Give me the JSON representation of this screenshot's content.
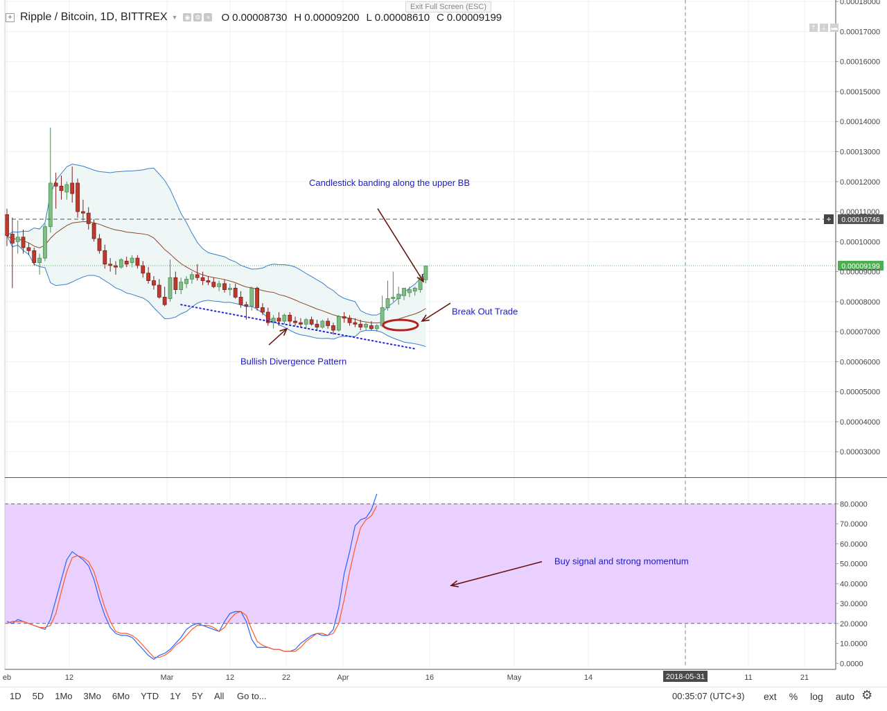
{
  "header": {
    "add_symbol_icon": "plus-box-icon",
    "title": "Ripple / Bitcoin, 1D, BITTREX",
    "ohlc": {
      "o_label": "O",
      "o_value": "0.00008730",
      "h_label": "H",
      "h_value": "0.00009200",
      "l_label": "L",
      "l_value": "0.00008610",
      "c_label": "C",
      "c_value": "0.00009199"
    },
    "exit_fullscreen": "Exit Full Screen (ESC)"
  },
  "chart_data": [
    {
      "type": "candlestick",
      "title": "Ripple / Bitcoin, 1D, BITTREX",
      "y_axis_ticks": [
        "0.00018000",
        "0.00017000",
        "0.00016000",
        "0.00015000",
        "0.00014000",
        "0.00013000",
        "0.00012000",
        "0.00011000",
        "0.00010000",
        "0.00009000",
        "0.00008000",
        "0.00007000",
        "0.00006000",
        "0.00005000",
        "0.00004000",
        "0.00003000"
      ],
      "ylim": [
        2.15e-05,
        0.0001805
      ],
      "x_axis_labels": [
        "eb",
        "12",
        "Mar",
        "12",
        "22",
        "Apr",
        "16",
        "May",
        "14",
        "2018-05-31",
        "11",
        "21"
      ],
      "price_markers": [
        {
          "value": 0.00010746,
          "label": "0.00010746",
          "color": "#555555"
        },
        {
          "value": 9.199e-05,
          "label": "0.00009199",
          "color": "#4caf50"
        }
      ],
      "candles": [
        {
          "o": 0.000109,
          "h": 0.000111,
          "l": 9.85e-05,
          "c": 0.000102
        },
        {
          "o": 0.0001025,
          "h": 0.000108,
          "l": 8.45e-05,
          "c": 9.95e-05
        },
        {
          "o": 0.0001,
          "h": 0.000107,
          "l": 9.6e-05,
          "c": 0.0001015
        },
        {
          "o": 0.0001015,
          "h": 0.000104,
          "l": 9.6e-05,
          "c": 9.8e-05
        },
        {
          "o": 9.8e-05,
          "h": 9.95e-05,
          "l": 9.55e-05,
          "c": 9.7e-05
        },
        {
          "o": 9.7e-05,
          "h": 9.8e-05,
          "l": 9.2e-05,
          "c": 9.3e-05
        },
        {
          "o": 9.3e-05,
          "h": 9.6e-05,
          "l": 8.9e-05,
          "c": 9.45e-05
        },
        {
          "o": 9.45e-05,
          "h": 0.000106,
          "l": 9.35e-05,
          "c": 0.000105
        },
        {
          "o": 0.000105,
          "h": 0.000138,
          "l": 0.000103,
          "c": 0.0001195
        },
        {
          "o": 0.0001195,
          "h": 0.000123,
          "l": 0.000111,
          "c": 0.0001185
        },
        {
          "o": 0.0001185,
          "h": 0.000122,
          "l": 0.000114,
          "c": 0.000117
        },
        {
          "o": 0.0001165,
          "h": 0.00012,
          "l": 0.000114,
          "c": 0.000119
        },
        {
          "o": 0.0001195,
          "h": 0.000125,
          "l": 0.000113,
          "c": 0.000116
        },
        {
          "o": 0.0001195,
          "h": 0.000121,
          "l": 0.000108,
          "c": 0.00011
        },
        {
          "o": 0.00011,
          "h": 0.000114,
          "l": 0.000107,
          "c": 0.0001095
        },
        {
          "o": 0.0001095,
          "h": 0.0001115,
          "l": 0.000104,
          "c": 0.000106
        },
        {
          "o": 0.000106,
          "h": 0.0001075,
          "l": 0.0001,
          "c": 0.000101
        },
        {
          "o": 0.000101,
          "h": 0.0001025,
          "l": 9.6e-05,
          "c": 9.7e-05
        },
        {
          "o": 9.7e-05,
          "h": 9.9e-05,
          "l": 9.1e-05,
          "c": 9.25e-05
        },
        {
          "o": 9.25e-05,
          "h": 9.45e-05,
          "l": 9e-05,
          "c": 9.2e-05
        },
        {
          "o": 9.2e-05,
          "h": 9.35e-05,
          "l": 8.9e-05,
          "c": 9.15e-05
        },
        {
          "o": 9.15e-05,
          "h": 9.45e-05,
          "l": 9.1e-05,
          "c": 9.4e-05
        },
        {
          "o": 9.35e-05,
          "h": 9.5e-05,
          "l": 9.15e-05,
          "c": 9.25e-05
        },
        {
          "o": 9.3e-05,
          "h": 9.55e-05,
          "l": 9.15e-05,
          "c": 9.45e-05
        },
        {
          "o": 9.45e-05,
          "h": 9.55e-05,
          "l": 9.1e-05,
          "c": 9.2e-05
        },
        {
          "o": 9.2e-05,
          "h": 9.35e-05,
          "l": 8.8e-05,
          "c": 8.95e-05
        },
        {
          "o": 8.95e-05,
          "h": 9.15e-05,
          "l": 8.6e-05,
          "c": 8.7e-05
        },
        {
          "o": 8.7e-05,
          "h": 8.85e-05,
          "l": 8.4e-05,
          "c": 8.55e-05
        },
        {
          "o": 8.55e-05,
          "h": 8.75e-05,
          "l": 8.1e-05,
          "c": 8.15e-05
        },
        {
          "o": 8.15e-05,
          "h": 8.5e-05,
          "l": 7.85e-05,
          "c": 7.9e-05
        },
        {
          "o": 8.1e-05,
          "h": 9.4e-05,
          "l": 8e-05,
          "c": 8.8e-05
        },
        {
          "o": 8.8e-05,
          "h": 9e-05,
          "l": 8.25e-05,
          "c": 8.4e-05
        },
        {
          "o": 8.4e-05,
          "h": 8.8e-05,
          "l": 8.25e-05,
          "c": 8.65e-05
        },
        {
          "o": 8.6e-05,
          "h": 8.85e-05,
          "l": 8.45e-05,
          "c": 8.75e-05
        },
        {
          "o": 8.75e-05,
          "h": 9e-05,
          "l": 8.6e-05,
          "c": 8.9e-05
        },
        {
          "o": 8.9e-05,
          "h": 9.25e-05,
          "l": 8.7e-05,
          "c": 8.8e-05
        },
        {
          "o": 8.8e-05,
          "h": 9e-05,
          "l": 8.55e-05,
          "c": 8.7e-05
        },
        {
          "o": 8.7e-05,
          "h": 8.85e-05,
          "l": 8.55e-05,
          "c": 8.65e-05
        },
        {
          "o": 8.65e-05,
          "h": 8.8e-05,
          "l": 8.45e-05,
          "c": 8.5e-05
        },
        {
          "o": 8.5e-05,
          "h": 8.7e-05,
          "l": 8.35e-05,
          "c": 8.6e-05
        },
        {
          "o": 8.6e-05,
          "h": 8.75e-05,
          "l": 8.3e-05,
          "c": 8.4e-05
        },
        {
          "o": 8.4e-05,
          "h": 8.6e-05,
          "l": 8.2e-05,
          "c": 8.45e-05
        },
        {
          "o": 8.45e-05,
          "h": 8.6e-05,
          "l": 8.1e-05,
          "c": 8.15e-05
        },
        {
          "o": 8.15e-05,
          "h": 8.35e-05,
          "l": 7.8e-05,
          "c": 7.9e-05
        },
        {
          "o": 7.9e-05,
          "h": 8e-05,
          "l": 7.4e-05,
          "c": 7.85e-05
        },
        {
          "o": 7.85e-05,
          "h": 8.5e-05,
          "l": 7.7e-05,
          "c": 8.45e-05
        },
        {
          "o": 8.45e-05,
          "h": 8.5e-05,
          "l": 7.7e-05,
          "c": 7.8e-05
        },
        {
          "o": 7.8e-05,
          "h": 7.95e-05,
          "l": 7.55e-05,
          "c": 7.65e-05
        },
        {
          "o": 7.65e-05,
          "h": 7.8e-05,
          "l": 7.2e-05,
          "c": 7.3e-05
        },
        {
          "o": 7.3e-05,
          "h": 7.55e-05,
          "l": 7.1e-05,
          "c": 7.45e-05
        },
        {
          "o": 7.45e-05,
          "h": 7.65e-05,
          "l": 7.2e-05,
          "c": 7.35e-05
        },
        {
          "o": 7.35e-05,
          "h": 7.6e-05,
          "l": 7.25e-05,
          "c": 7.55e-05
        },
        {
          "o": 7.55e-05,
          "h": 7.65e-05,
          "l": 7.25e-05,
          "c": 7.35e-05
        },
        {
          "o": 7.35e-05,
          "h": 7.5e-05,
          "l": 7.2e-05,
          "c": 7.3e-05
        },
        {
          "o": 7.3e-05,
          "h": 7.45e-05,
          "l": 7.15e-05,
          "c": 7.25e-05
        },
        {
          "o": 7.25e-05,
          "h": 7.45e-05,
          "l": 7.1e-05,
          "c": 7.4e-05
        },
        {
          "o": 7.4e-05,
          "h": 7.5e-05,
          "l": 7.2e-05,
          "c": 7.25e-05
        },
        {
          "o": 7.25e-05,
          "h": 7.4e-05,
          "l": 7.05e-05,
          "c": 7.15e-05
        },
        {
          "o": 7.15e-05,
          "h": 7.4e-05,
          "l": 7.1e-05,
          "c": 7.35e-05
        },
        {
          "o": 7.35e-05,
          "h": 7.45e-05,
          "l": 7.1e-05,
          "c": 7.2e-05
        },
        {
          "o": 7.2e-05,
          "h": 7.3e-05,
          "l": 6.9e-05,
          "c": 7.05e-05
        },
        {
          "o": 7.05e-05,
          "h": 7.55e-05,
          "l": 7e-05,
          "c": 7.5e-05
        },
        {
          "o": 7.5e-05,
          "h": 7.65e-05,
          "l": 7.3e-05,
          "c": 7.45e-05
        },
        {
          "o": 7.45e-05,
          "h": 7.55e-05,
          "l": 7.2e-05,
          "c": 7.3e-05
        },
        {
          "o": 7.3e-05,
          "h": 7.45e-05,
          "l": 7.15e-05,
          "c": 7.25e-05
        },
        {
          "o": 7.25e-05,
          "h": 7.4e-05,
          "l": 7.05e-05,
          "c": 7.15e-05
        },
        {
          "o": 7.15e-05,
          "h": 7.3e-05,
          "l": 7.05e-05,
          "c": 7.25e-05
        },
        {
          "o": 7.2e-05,
          "h": 7.35e-05,
          "l": 7.05e-05,
          "c": 7.1e-05
        },
        {
          "o": 7.1e-05,
          "h": 7.25e-05,
          "l": 7e-05,
          "c": 7.2e-05
        },
        {
          "o": 7.2e-05,
          "h": 8.2e-05,
          "l": 7.15e-05,
          "c": 7.8e-05
        },
        {
          "o": 7.8e-05,
          "h": 8.7e-05,
          "l": 7.7e-05,
          "c": 8.1e-05
        },
        {
          "o": 8.1e-05,
          "h": 9e-05,
          "l": 8e-05,
          "c": 8.15e-05
        },
        {
          "o": 8.1e-05,
          "h": 8.5e-05,
          "l": 7.9e-05,
          "c": 8.25e-05
        },
        {
          "o": 8.2e-05,
          "h": 8.45e-05,
          "l": 8.05e-05,
          "c": 8.45e-05
        },
        {
          "o": 8.3e-05,
          "h": 8.5e-05,
          "l": 8.15e-05,
          "c": 8.4e-05
        },
        {
          "o": 8.35e-05,
          "h": 8.5e-05,
          "l": 8.2e-05,
          "c": 8.45e-05
        },
        {
          "o": 8.4e-05,
          "h": 8.9e-05,
          "l": 8.3e-05,
          "c": 8.8e-05
        },
        {
          "o": 8.73e-05,
          "h": 9.2e-05,
          "l": 8.61e-05,
          "c": 9.19e-05
        }
      ],
      "indicators": [
        "Bollinger Bands",
        "Moving average (basis)"
      ],
      "annotations": [
        {
          "text": "Candlestick banding along the upper BB",
          "color": "#1a1acc"
        },
        {
          "text": "Break Out Trade",
          "color": "#1a1acc"
        },
        {
          "text": "Bullish Divergence Pattern",
          "color": "#1a1acc"
        }
      ]
    },
    {
      "type": "line",
      "title": "",
      "y_axis_ticks": [
        "80.0000",
        "70.0000",
        "60.0000",
        "50.0000",
        "40.0000",
        "30.0000",
        "20.0000",
        "10.0000",
        "0.0000"
      ],
      "ylim": [
        -2,
        93
      ],
      "overbought": 80,
      "oversold": 20,
      "series": [
        {
          "name": "",
          "color": "#2962ff",
          "values": [
            21,
            20,
            22,
            21,
            20,
            19,
            18,
            17,
            22,
            32,
            42,
            52,
            56,
            54,
            52,
            49,
            42,
            32,
            24,
            18,
            15,
            14,
            14,
            13,
            10,
            7,
            4,
            2,
            4,
            5,
            7,
            10,
            13,
            17,
            19,
            20,
            19,
            18,
            17,
            16,
            21,
            25,
            26,
            26,
            21,
            12,
            8,
            8,
            8,
            7,
            7,
            6,
            6,
            7,
            10,
            12,
            14,
            15,
            14,
            14,
            17,
            28,
            45,
            56,
            69,
            72,
            73,
            77,
            85
          ]
        },
        {
          "name": "",
          "color": "#ff5722",
          "values": [
            20,
            21,
            21,
            21,
            20,
            19,
            18,
            18,
            19,
            25,
            36,
            46,
            53,
            54,
            53,
            51,
            46,
            37,
            28,
            21,
            16,
            15,
            15,
            14,
            12,
            9,
            6,
            3,
            3,
            4,
            6,
            9,
            11,
            14,
            17,
            19,
            19,
            19,
            18,
            16,
            18,
            22,
            25,
            26,
            24,
            17,
            11,
            9,
            8,
            7,
            7,
            6,
            6,
            6,
            8,
            11,
            13,
            15,
            15,
            14,
            15,
            20,
            32,
            46,
            58,
            68,
            72,
            74,
            79
          ]
        }
      ],
      "annotations": [
        {
          "text": "Buy signal and strong momentum",
          "color": "#1a1acc"
        }
      ]
    }
  ],
  "annotation_arrow_color": "#6b1414",
  "ellipse_color": "#b22222",
  "colors": {
    "up_candle": "#7fbf86",
    "down_candle": "#c0392b",
    "bb_line": "#3a7ec8",
    "bb_fill": "#eef6f6",
    "basis_line": "#8b4a2b",
    "stoch_band": "#ead0ff",
    "divergence_line": "#1e1edc"
  },
  "bottom_bar": {
    "ranges": [
      "1D",
      "5D",
      "1Mo",
      "3Mo",
      "6Mo",
      "YTD",
      "1Y",
      "5Y",
      "All"
    ],
    "goto": "Go to...",
    "clock": "00:35:07 (UTC+3)",
    "ext": "ext",
    "percent": "%",
    "log": "log",
    "auto": "auto",
    "settings_icon": "gear-icon"
  }
}
